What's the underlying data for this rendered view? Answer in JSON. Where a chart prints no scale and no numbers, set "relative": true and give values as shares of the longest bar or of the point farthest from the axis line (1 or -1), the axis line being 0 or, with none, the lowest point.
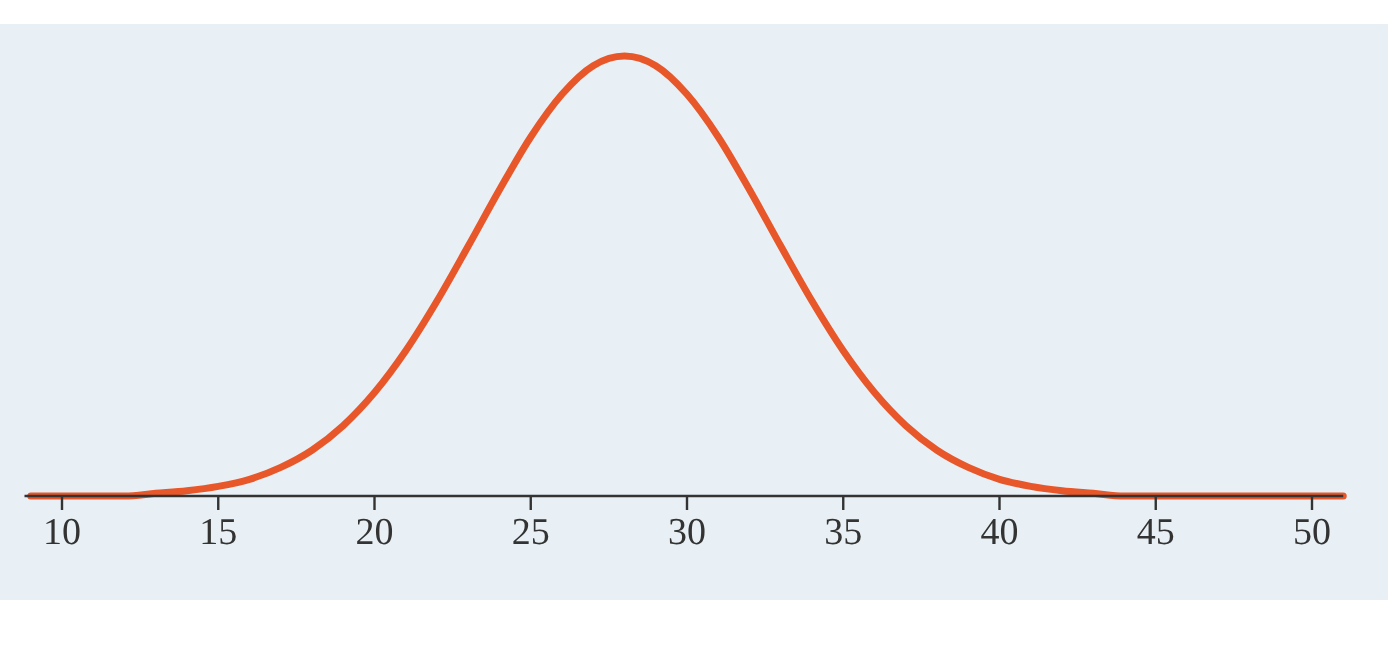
{
  "chart_data": {
    "type": "line",
    "relative": true,
    "x": [
      9,
      10,
      11,
      12,
      13,
      14,
      15,
      16,
      17,
      18,
      19,
      20,
      21,
      22,
      23,
      24,
      25,
      26,
      27,
      28,
      29,
      30,
      31,
      32,
      33,
      34,
      35,
      36,
      37,
      38,
      39,
      40,
      41,
      42,
      43,
      44,
      45,
      46,
      47,
      48,
      49,
      50,
      51
    ],
    "series": [
      {
        "color": "#e8572a",
        "values": [
          0,
          0,
          0,
          0,
          0.006,
          0.012,
          0.022,
          0.038,
          0.065,
          0.104,
          0.16,
          0.235,
          0.33,
          0.443,
          0.568,
          0.696,
          0.816,
          0.913,
          0.978,
          1,
          0.978,
          0.913,
          0.816,
          0.696,
          0.568,
          0.443,
          0.33,
          0.235,
          0.16,
          0.104,
          0.065,
          0.038,
          0.022,
          0.012,
          0.006,
          0,
          0,
          0,
          0,
          0,
          0,
          0,
          0
        ]
      }
    ],
    "xlim": [
      8.8,
      51
    ],
    "xticks": [
      10,
      15,
      20,
      25,
      30,
      35,
      40,
      45,
      50
    ],
    "grid": false,
    "marker": "none",
    "line_style": "solid"
  }
}
